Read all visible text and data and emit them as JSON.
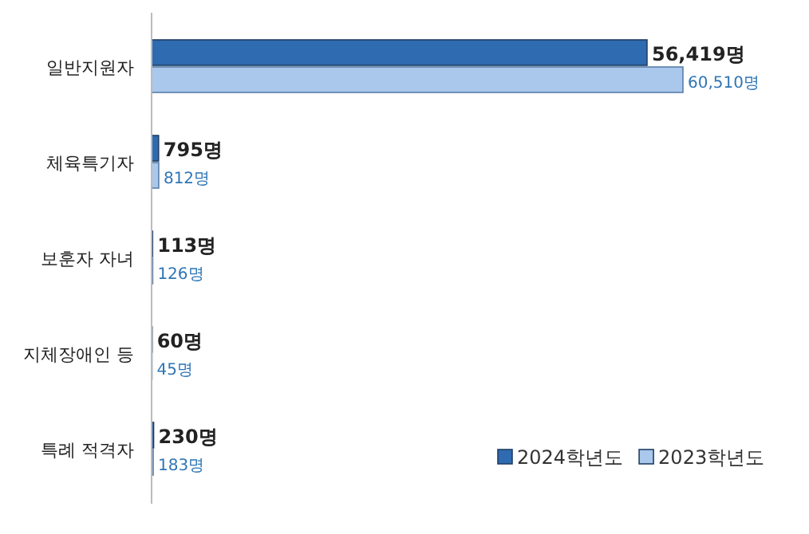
{
  "chart_data": {
    "type": "bar",
    "orientation": "horizontal",
    "legend": "bottom right",
    "categories": [
      "일반지원자",
      "체육특기자",
      "보훈자 자녀",
      "지체장애인 등",
      "특례 적격자"
    ],
    "series": [
      {
        "name": "2024학년도",
        "color": "#2e6bb0",
        "values": [
          56419,
          795,
          113,
          60,
          230
        ],
        "value_labels": [
          "56,419명",
          "795명",
          "113명",
          "60명",
          "230명"
        ]
      },
      {
        "name": "2023학년도",
        "color": "#a9c8ec",
        "values": [
          60510,
          812,
          126,
          45,
          183
        ],
        "value_labels": [
          "60,510명",
          "812명",
          "126명",
          "45명",
          "183명"
        ]
      }
    ]
  }
}
